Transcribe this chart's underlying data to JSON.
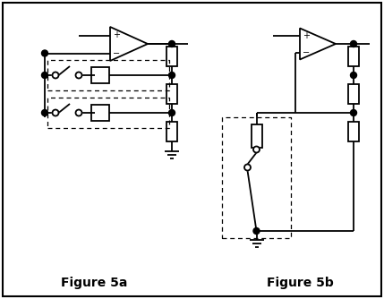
{
  "fig_width": 4.29,
  "fig_height": 3.34,
  "dpi": 100,
  "background_color": "#ffffff",
  "border_color": "#000000",
  "line_color": "#000000",
  "label_a": "Figure 5a",
  "label_b": "Figure 5b",
  "label_fontsize": 10,
  "label_fontweight": "bold",
  "lw": 1.3
}
